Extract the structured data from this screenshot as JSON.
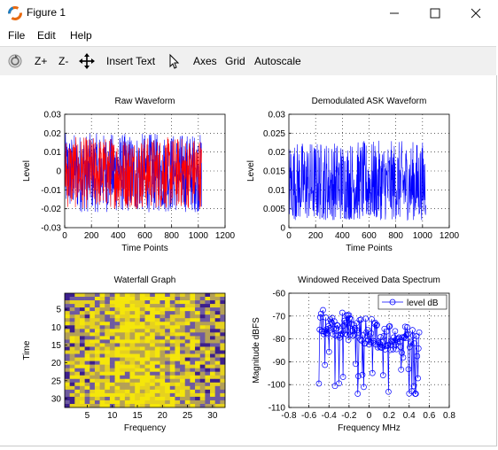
{
  "window": {
    "title": "Figure 1"
  },
  "menu": {
    "file": "File",
    "edit": "Edit",
    "help": "Help"
  },
  "toolbar": {
    "zoom_in": "Z+",
    "zoom_out": "Z-",
    "insert_text": "Insert Text",
    "axes": "Axes",
    "grid": "Grid",
    "autoscale": "Autoscale"
  },
  "colors": {
    "blue": "#0000ff",
    "red": "#ff0000",
    "toolbar_bg": "#f0f0f0"
  },
  "chart_data": [
    {
      "type": "line",
      "title": "Raw Waveform",
      "xlabel": "Time Points",
      "ylabel": "Level",
      "xlim": [
        0,
        1200
      ],
      "ylim": [
        -0.03,
        0.03
      ],
      "xticks": [
        "0",
        "200",
        "400",
        "600",
        "800",
        "1000",
        "1200"
      ],
      "yticks": [
        "0.03",
        "0.02",
        "0.01",
        "0",
        "-0.01",
        "-0.02",
        "-0.03"
      ],
      "grid": true,
      "series": [
        {
          "color": "#0000ff",
          "x_range": [
            0,
            1024
          ],
          "approx_range": [
            -0.022,
            0.02
          ]
        },
        {
          "color": "#ff0000",
          "x_range": [
            0,
            1024
          ],
          "approx_range": [
            -0.02,
            0.018
          ]
        }
      ]
    },
    {
      "type": "line",
      "title": "Demodulated ASK Waveform",
      "xlabel": "Time Points",
      "ylabel": "Level",
      "xlim": [
        0,
        1200
      ],
      "ylim": [
        0,
        0.03
      ],
      "xticks": [
        "0",
        "200",
        "400",
        "600",
        "800",
        "1000",
        "1200"
      ],
      "yticks": [
        "0.03",
        "0.025",
        "0.02",
        "0.015",
        "0.01",
        "0.005",
        "0"
      ],
      "grid": true,
      "series": [
        {
          "color": "#0000ff",
          "x_range": [
            0,
            1024
          ],
          "approx_range": [
            0.002,
            0.023
          ]
        }
      ]
    },
    {
      "type": "heatmap",
      "title": "Waterfall Graph",
      "xlabel": "Frequency",
      "ylabel": "Time",
      "xticks": [
        "5",
        "10",
        "15",
        "20",
        "25",
        "30"
      ],
      "yticks": [
        "5",
        "10",
        "15",
        "20",
        "25",
        "30"
      ],
      "size": [
        32,
        32
      ],
      "colormap": [
        "#3c1e8c",
        "#6e5aa0",
        "#b4a056",
        "#e6d21e",
        "#f5e60a"
      ]
    },
    {
      "type": "line",
      "title": "Windowed Received Data Spectrum",
      "xlabel": "Frequency MHz",
      "ylabel": "Magnitude dBFS",
      "xlim": [
        -0.8,
        0.8
      ],
      "ylim": [
        -110,
        -60
      ],
      "xticks": [
        "-0.8",
        "-0.6",
        "-0.4",
        "-0.2",
        "0",
        "0.2",
        "0.4",
        "0.6",
        "0.8"
      ],
      "yticks": [
        "-60",
        "-70",
        "-80",
        "-90",
        "-100",
        "-110"
      ],
      "grid": true,
      "legend": "top-right",
      "series": [
        {
          "name": "level dB",
          "color": "#0000ff",
          "marker": "circle",
          "x_range": [
            -0.5,
            0.5
          ],
          "approx_range": [
            -104,
            -64
          ]
        }
      ]
    }
  ]
}
